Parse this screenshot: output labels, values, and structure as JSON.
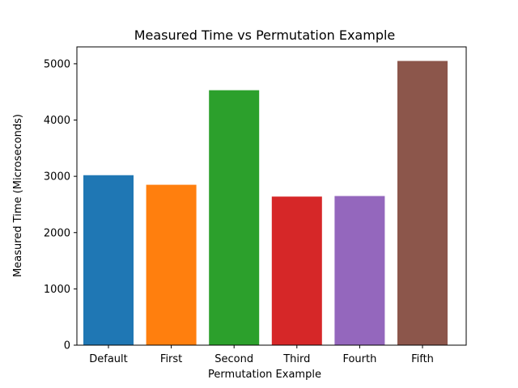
{
  "chart_data": {
    "type": "bar",
    "title": "Measured Time vs Permutation Example",
    "xlabel": "Permutation Example",
    "ylabel": "Measured Time (Microseconds)",
    "categories": [
      "Default",
      "First",
      "Second",
      "Third",
      "Fourth",
      "Fifth"
    ],
    "values": [
      3020,
      2850,
      4530,
      2640,
      2650,
      5050
    ],
    "colors": [
      "#1f77b4",
      "#ff7f0e",
      "#2ca02c",
      "#d62728",
      "#9467bd",
      "#8c564b"
    ],
    "ylim": [
      0,
      5300
    ],
    "yticks": [
      0,
      1000,
      2000,
      3000,
      4000,
      5000
    ],
    "grid": false,
    "legend": "none"
  }
}
